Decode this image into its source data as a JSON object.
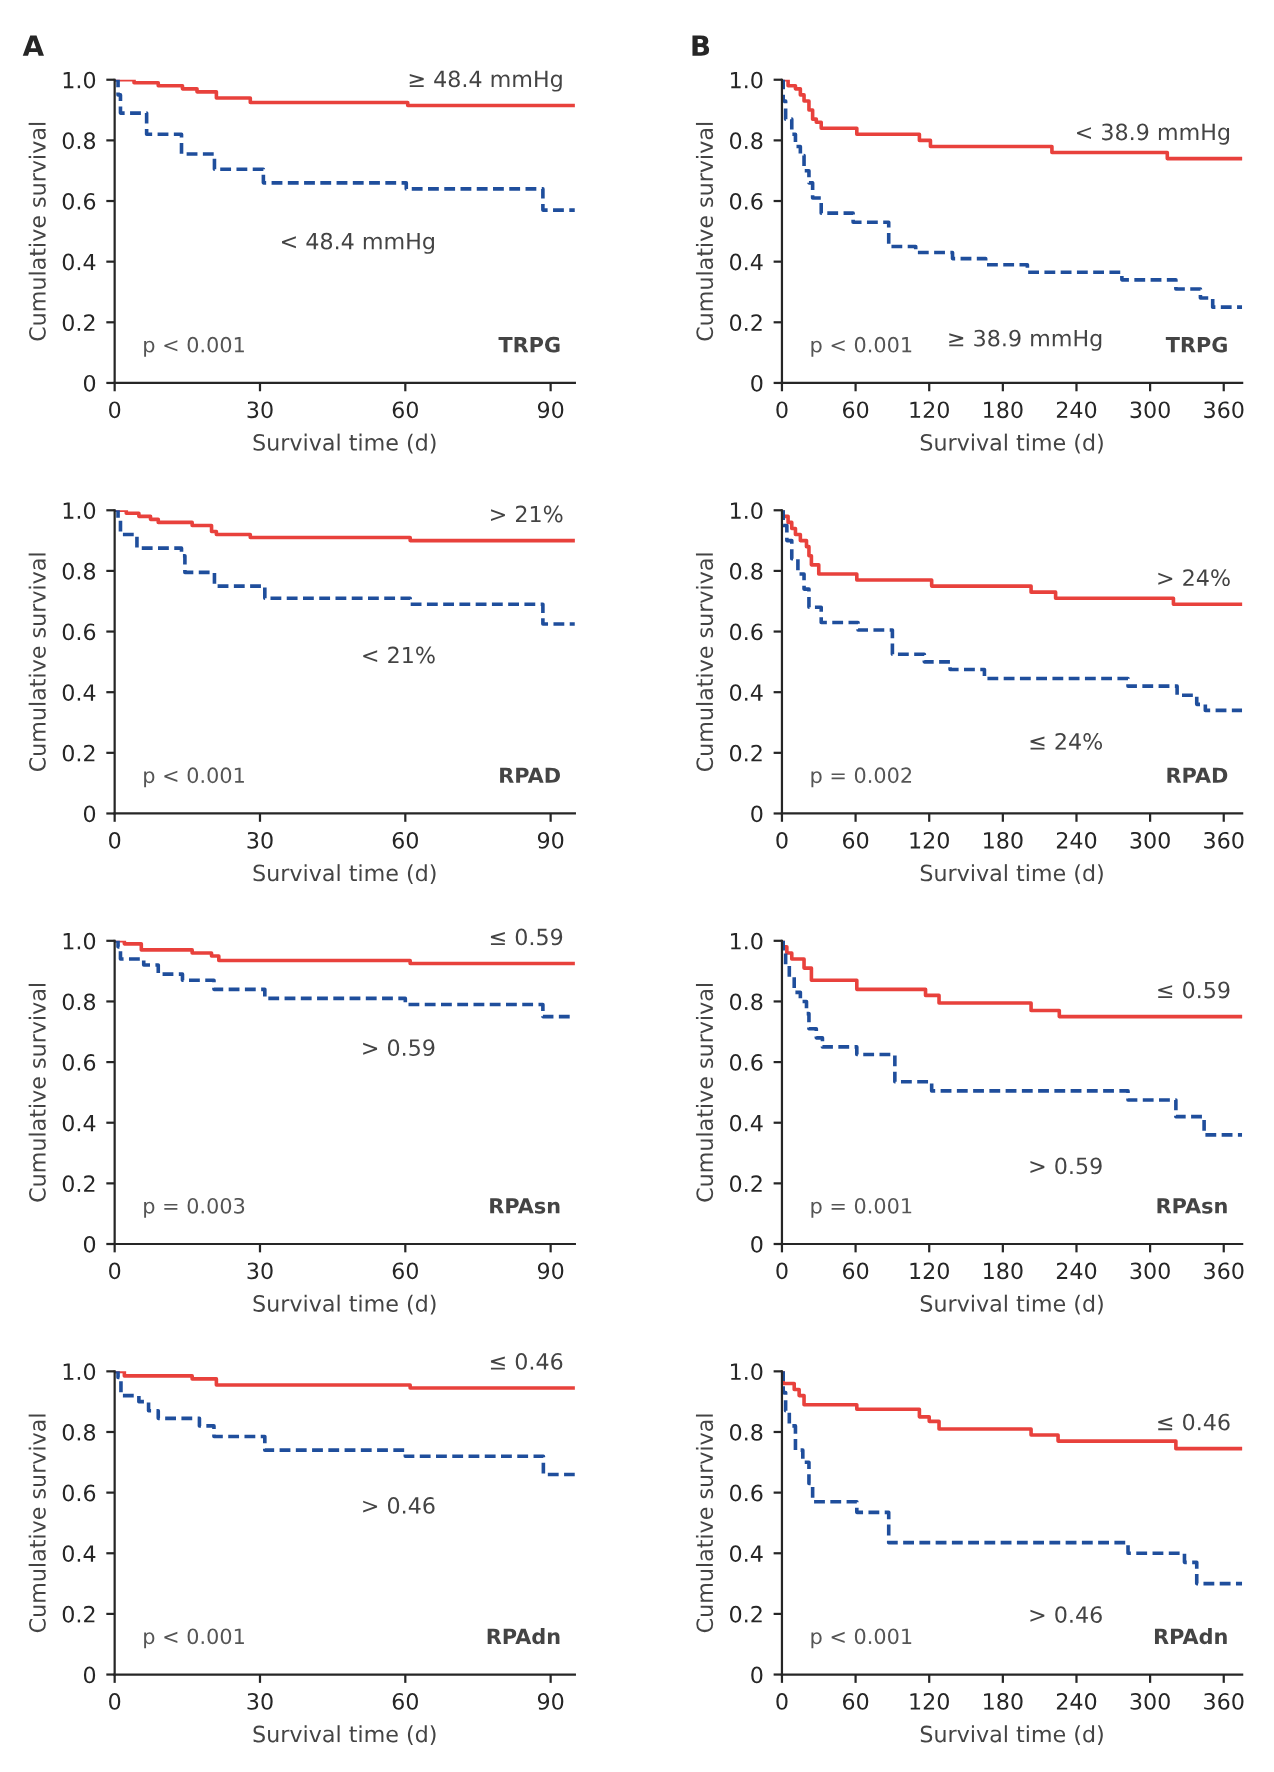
{
  "chart_data": [
    {
      "type": "step",
      "title": "A",
      "xlabel": "Survival time (d)",
      "ylabel": "Cumulative survival",
      "xlim": [
        0,
        95
      ],
      "xticks": [
        0,
        30,
        60,
        90
      ],
      "ylim": [
        0,
        1.0
      ],
      "yticks": [
        0,
        {
          "value": 0.2,
          "label": "0.2"
        },
        {
          "value": 0.4,
          "label": "0.4"
        },
        {
          "value": 0.6,
          "label": "0.6"
        },
        {
          "value": 0.8,
          "label": "0.8"
        },
        {
          "value": 1.0,
          "label": "1.0"
        }
      ],
      "grid": false,
      "legend": false,
      "annotations": [
        "p < 0.001",
        "TRPG"
      ],
      "series": [
        {
          "name": "≥ 48.4 mmHg",
          "color": "#e8413c",
          "line_style": "solid",
          "x": [
            0,
            4,
            9,
            14,
            17,
            21,
            28,
            60.5,
            95
          ],
          "values": [
            1.0,
            0.99,
            0.98,
            0.97,
            0.96,
            0.94,
            0.925,
            0.915,
            0.915
          ]
        },
        {
          "name": "< 48.4 mmHg",
          "color": "#1f4e9c",
          "line_style": "dashed",
          "x": [
            0,
            0.7,
            1.2,
            6.6,
            13.8,
            20.6,
            30.7,
            60.2,
            88.4,
            95
          ],
          "values": [
            1.0,
            0.95,
            0.89,
            0.82,
            0.755,
            0.705,
            0.66,
            0.64,
            0.57,
            0.57
          ]
        }
      ]
    },
    {
      "type": "step",
      "title": "B",
      "xlabel": "Survival time (d)",
      "ylabel": "Cumulative survival",
      "xlim": [
        0,
        375
      ],
      "xticks": [
        0,
        60,
        120,
        180,
        240,
        300,
        360
      ],
      "ylim": [
        0,
        1.0
      ],
      "yticks": [
        0,
        {
          "value": 0.2,
          "label": "0.2"
        },
        {
          "value": 0.4,
          "label": "0.4"
        },
        {
          "value": 0.6,
          "label": "0.6"
        },
        {
          "value": 0.8,
          "label": "0.8"
        },
        {
          "value": 1.0,
          "label": "1.0"
        }
      ],
      "grid": false,
      "legend": false,
      "annotations": [
        "p < 0.001",
        "TRPG"
      ],
      "series": [
        {
          "name": "< 38.9 mmHg",
          "color": "#e8413c",
          "line_style": "solid",
          "x": [
            0,
            5,
            11,
            15,
            18,
            22,
            25,
            28,
            32,
            61,
            112,
            121,
            220,
            314,
            375
          ],
          "values": [
            1.0,
            0.98,
            0.97,
            0.95,
            0.93,
            0.9,
            0.87,
            0.86,
            0.84,
            0.82,
            0.8,
            0.78,
            0.76,
            0.74,
            0.74
          ]
        },
        {
          "name": "≥ 38.9 mmHg",
          "color": "#1f4e9c",
          "line_style": "dashed",
          "x": [
            0,
            1,
            3,
            8,
            11,
            15,
            18,
            22,
            25,
            32,
            58,
            87,
            109,
            139,
            166,
            200,
            277,
            321,
            341,
            351,
            375
          ],
          "values": [
            1.0,
            0.93,
            0.87,
            0.82,
            0.78,
            0.75,
            0.7,
            0.66,
            0.61,
            0.56,
            0.53,
            0.45,
            0.43,
            0.41,
            0.39,
            0.365,
            0.34,
            0.31,
            0.28,
            0.25,
            0.25
          ]
        }
      ]
    },
    {
      "type": "step",
      "xlabel": "Survival time (d)",
      "ylabel": "Cumulative survival",
      "xlim": [
        0,
        95
      ],
      "xticks": [
        0,
        30,
        60,
        90
      ],
      "ylim": [
        0,
        1.0
      ],
      "yticks": [
        0,
        {
          "value": 0.2,
          "label": "0.2"
        },
        {
          "value": 0.4,
          "label": "0.4"
        },
        {
          "value": 0.6,
          "label": "0.6"
        },
        {
          "value": 0.8,
          "label": "0.8"
        },
        {
          "value": 1.0,
          "label": "1.0"
        }
      ],
      "grid": false,
      "legend": false,
      "annotations": [
        "p < 0.001",
        "RPAD"
      ],
      "series": [
        {
          "name": "> 21%",
          "color": "#e8413c",
          "line_style": "solid",
          "x": [
            0,
            2.4,
            5,
            7.4,
            9,
            16,
            20,
            21,
            28,
            61,
            95
          ],
          "values": [
            1.0,
            0.99,
            0.98,
            0.97,
            0.96,
            0.95,
            0.93,
            0.92,
            0.91,
            0.9,
            0.9
          ]
        },
        {
          "name": "< 21%",
          "color": "#1f4e9c",
          "line_style": "dashed",
          "x": [
            0,
            0.7,
            1.2,
            4.6,
            13.8,
            14.5,
            20.6,
            31,
            61,
            88.4,
            95
          ],
          "values": [
            1.0,
            0.97,
            0.92,
            0.875,
            0.85,
            0.795,
            0.75,
            0.71,
            0.69,
            0.625,
            0.625
          ]
        }
      ]
    },
    {
      "type": "step",
      "xlabel": "Survival time (d)",
      "ylabel": "Cumulative survival",
      "xlim": [
        0,
        375
      ],
      "xticks": [
        0,
        60,
        120,
        180,
        240,
        300,
        360
      ],
      "ylim": [
        0,
        1.0
      ],
      "yticks": [
        0,
        {
          "value": 0.2,
          "label": "0.2"
        },
        {
          "value": 0.4,
          "label": "0.4"
        },
        {
          "value": 0.6,
          "label": "0.6"
        },
        {
          "value": 0.8,
          "label": "0.8"
        },
        {
          "value": 1.0,
          "label": "1.0"
        }
      ],
      "grid": false,
      "legend": false,
      "annotations": [
        "p = 0.002",
        "RPAD"
      ],
      "series": [
        {
          "name": "> 24%",
          "color": "#e8413c",
          "line_style": "solid",
          "x": [
            0,
            1,
            5,
            8,
            11,
            15,
            20,
            22,
            24,
            30,
            61,
            122,
            203,
            223,
            319,
            375
          ],
          "values": [
            1.0,
            0.98,
            0.96,
            0.94,
            0.92,
            0.9,
            0.88,
            0.85,
            0.82,
            0.79,
            0.77,
            0.75,
            0.73,
            0.71,
            0.69,
            0.69
          ]
        },
        {
          "name": "≤ 24%",
          "color": "#1f4e9c",
          "line_style": "dashed",
          "x": [
            0,
            1,
            4,
            8,
            13,
            18,
            22,
            32,
            62,
            90,
            116,
            137,
            165,
            282,
            322,
            338,
            345,
            375
          ],
          "values": [
            1.0,
            0.95,
            0.9,
            0.84,
            0.79,
            0.74,
            0.68,
            0.63,
            0.605,
            0.525,
            0.5,
            0.475,
            0.445,
            0.42,
            0.39,
            0.36,
            0.34,
            0.34
          ]
        }
      ]
    },
    {
      "type": "step",
      "xlabel": "Survival time (d)",
      "ylabel": "Cumulative survival",
      "xlim": [
        0,
        95
      ],
      "xticks": [
        0,
        30,
        60,
        90
      ],
      "ylim": [
        0,
        1.0
      ],
      "yticks": [
        0,
        {
          "value": 0.2,
          "label": "0.2"
        },
        {
          "value": 0.4,
          "label": "0.4"
        },
        {
          "value": 0.6,
          "label": "0.6"
        },
        {
          "value": 0.8,
          "label": "0.8"
        },
        {
          "value": 1.0,
          "label": "1.0"
        }
      ],
      "grid": false,
      "legend": false,
      "annotations": [
        "p = 0.003",
        "RPAsn"
      ],
      "series": [
        {
          "name": "≤ 0.59",
          "color": "#e8413c",
          "line_style": "solid",
          "x": [
            0,
            2,
            5.5,
            16,
            20,
            21.5,
            61,
            95
          ],
          "values": [
            1.0,
            0.99,
            0.97,
            0.96,
            0.95,
            0.935,
            0.925,
            0.925
          ]
        },
        {
          "name": "> 0.59",
          "color": "#1f4e9c",
          "line_style": "dashed",
          "x": [
            0,
            0.7,
            1.2,
            6,
            9,
            14,
            20.5,
            31,
            60,
            88.4,
            95
          ],
          "values": [
            1.0,
            0.98,
            0.94,
            0.92,
            0.89,
            0.87,
            0.84,
            0.81,
            0.79,
            0.75,
            0.75
          ]
        }
      ]
    },
    {
      "type": "step",
      "xlabel": "Survival time (d)",
      "ylabel": "Cumulative survival",
      "xlim": [
        0,
        375
      ],
      "xticks": [
        0,
        60,
        120,
        180,
        240,
        300,
        360
      ],
      "ylim": [
        0,
        1.0
      ],
      "yticks": [
        0,
        {
          "value": 0.2,
          "label": "0.2"
        },
        {
          "value": 0.4,
          "label": "0.4"
        },
        {
          "value": 0.6,
          "label": "0.6"
        },
        {
          "value": 0.8,
          "label": "0.8"
        },
        {
          "value": 1.0,
          "label": "1.0"
        }
      ],
      "grid": false,
      "legend": false,
      "annotations": [
        "p = 0.001",
        "RPAsn"
      ],
      "series": [
        {
          "name": "≤ 0.59",
          "color": "#e8413c",
          "line_style": "solid",
          "x": [
            0,
            1,
            4,
            8,
            18,
            24,
            61,
            117,
            128,
            203,
            226,
            375
          ],
          "values": [
            1.0,
            0.98,
            0.96,
            0.94,
            0.91,
            0.87,
            0.84,
            0.82,
            0.795,
            0.77,
            0.75,
            0.75
          ]
        },
        {
          "name": "> 0.59",
          "color": "#1f4e9c",
          "line_style": "dashed",
          "x": [
            0,
            1,
            3,
            6,
            10,
            15,
            20,
            22,
            28,
            33,
            61,
            92,
            122,
            282,
            321,
            344,
            375
          ],
          "values": [
            1.0,
            0.96,
            0.92,
            0.88,
            0.83,
            0.8,
            0.76,
            0.71,
            0.68,
            0.65,
            0.625,
            0.535,
            0.505,
            0.475,
            0.42,
            0.36,
            0.36
          ]
        }
      ]
    },
    {
      "type": "step",
      "xlabel": "Survival time (d)",
      "ylabel": "Cumulative survival",
      "xlim": [
        0,
        95
      ],
      "xticks": [
        0,
        30,
        60,
        90
      ],
      "ylim": [
        0,
        1.0
      ],
      "yticks": [
        0,
        {
          "value": 0.2,
          "label": "0.2"
        },
        {
          "value": 0.4,
          "label": "0.4"
        },
        {
          "value": 0.6,
          "label": "0.6"
        },
        {
          "value": 0.8,
          "label": "0.8"
        },
        {
          "value": 1.0,
          "label": "1.0"
        }
      ],
      "grid": false,
      "legend": false,
      "annotations": [
        "p < 0.001",
        "RPAdn"
      ],
      "series": [
        {
          "name": "≤ 0.46",
          "color": "#e8413c",
          "line_style": "solid",
          "x": [
            0,
            2,
            16,
            21,
            61,
            95
          ],
          "values": [
            1.0,
            0.985,
            0.975,
            0.955,
            0.945,
            0.945
          ]
        },
        {
          "name": "> 0.46",
          "color": "#1f4e9c",
          "line_style": "dashed",
          "x": [
            0,
            0.7,
            1.3,
            5,
            7,
            9,
            17.5,
            20.5,
            31,
            60,
            88.5,
            95
          ],
          "values": [
            1.0,
            0.98,
            0.92,
            0.9,
            0.87,
            0.845,
            0.82,
            0.785,
            0.74,
            0.72,
            0.66,
            0.66
          ]
        }
      ]
    },
    {
      "type": "step",
      "xlabel": "Survival time (d)",
      "ylabel": "Cumulative survival",
      "xlim": [
        0,
        375
      ],
      "xticks": [
        0,
        60,
        120,
        180,
        240,
        300,
        360
      ],
      "ylim": [
        0,
        1.0
      ],
      "yticks": [
        0,
        {
          "value": 0.2,
          "label": "0.2"
        },
        {
          "value": 0.4,
          "label": "0.4"
        },
        {
          "value": 0.6,
          "label": "0.6"
        },
        {
          "value": 0.8,
          "label": "0.8"
        },
        {
          "value": 1.0,
          "label": "1.0"
        }
      ],
      "grid": false,
      "legend": false,
      "annotations": [
        "p < 0.001",
        "RPAdn"
      ],
      "series": [
        {
          "name": "≤ 0.46",
          "color": "#e8413c",
          "line_style": "solid",
          "x": [
            0,
            1,
            10,
            14,
            18,
            61,
            112,
            120,
            128,
            203,
            225,
            321,
            375
          ],
          "values": [
            1.0,
            0.96,
            0.94,
            0.92,
            0.89,
            0.875,
            0.85,
            0.835,
            0.81,
            0.79,
            0.77,
            0.745,
            0.745
          ]
        },
        {
          "name": "> 0.46",
          "color": "#1f4e9c",
          "line_style": "dashed",
          "x": [
            0,
            1,
            3,
            6,
            11,
            17,
            22,
            25,
            61,
            87,
            282,
            328,
            338,
            375
          ],
          "values": [
            1.0,
            0.93,
            0.87,
            0.82,
            0.74,
            0.7,
            0.63,
            0.57,
            0.535,
            0.435,
            0.4,
            0.37,
            0.3,
            0.3
          ]
        }
      ]
    }
  ]
}
